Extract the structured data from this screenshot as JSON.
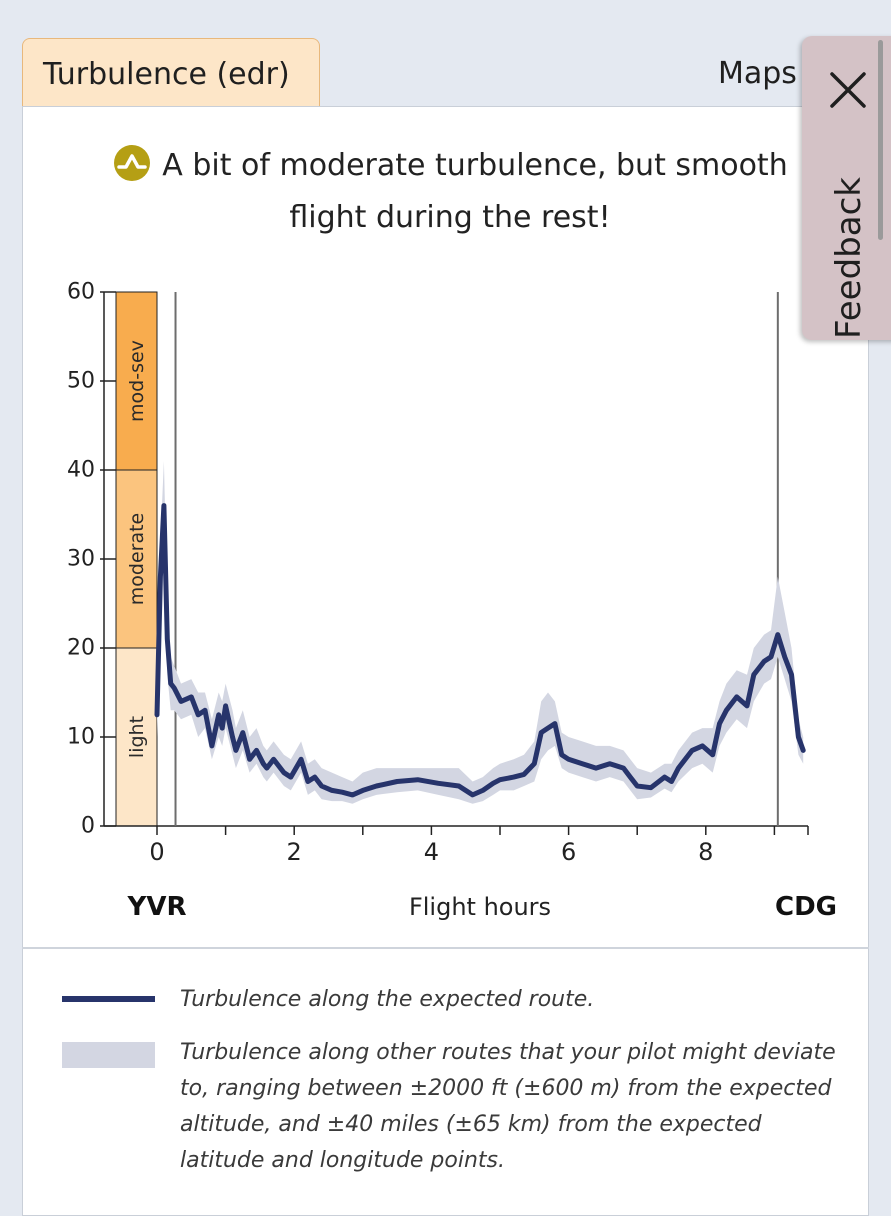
{
  "tabs": {
    "active": "Turbulence (edr)",
    "inactive": "Maps"
  },
  "summary": {
    "icon": "moderate-turbulence-icon",
    "text": "A bit of moderate turbulence, but smooth flight during the rest!"
  },
  "feedback": {
    "label": "Feedback",
    "close_icon": "close-icon"
  },
  "chart_data": {
    "type": "line",
    "title": "",
    "xlabel": "Flight hours",
    "ylabel": "",
    "xlim": [
      -0.6,
      9.5
    ],
    "ylim": [
      0,
      60
    ],
    "x_ticks": [
      0,
      2,
      4,
      6,
      8
    ],
    "y_ticks": [
      0,
      10,
      20,
      30,
      40,
      50,
      60
    ],
    "origin_label": "YVR",
    "destination_label": "CDG",
    "markers": [
      0.27,
      9.05
    ],
    "bands": [
      {
        "label": "light",
        "from": 0,
        "to": 20,
        "color": "#fde6c8"
      },
      {
        "label": "moderate",
        "from": 20,
        "to": 40,
        "color": "#fbc47e"
      },
      {
        "label": "mod-sev",
        "from": 40,
        "to": 60,
        "color": "#f8ac4e"
      }
    ],
    "series": [
      {
        "name": "Turbulence along the expected route.",
        "color": "#27346b",
        "x": [
          0,
          0.05,
          0.1,
          0.15,
          0.2,
          0.25,
          0.35,
          0.5,
          0.6,
          0.7,
          0.8,
          0.9,
          0.95,
          1.0,
          1.1,
          1.15,
          1.25,
          1.35,
          1.45,
          1.55,
          1.6,
          1.7,
          1.85,
          1.95,
          2.1,
          2.2,
          2.3,
          2.4,
          2.55,
          2.7,
          2.85,
          3.0,
          3.2,
          3.5,
          3.8,
          4.1,
          4.4,
          4.6,
          4.75,
          4.9,
          5.0,
          5.2,
          5.35,
          5.5,
          5.6,
          5.7,
          5.8,
          5.9,
          6.0,
          6.2,
          6.4,
          6.6,
          6.8,
          6.9,
          7.0,
          7.2,
          7.4,
          7.5,
          7.6,
          7.8,
          7.95,
          8.1,
          8.2,
          8.3,
          8.45,
          8.6,
          8.7,
          8.85,
          8.95,
          9.05,
          9.15,
          9.25,
          9.35,
          9.42
        ],
        "values": [
          12.5,
          28,
          36,
          21,
          16,
          15.5,
          14,
          14.5,
          12.5,
          13,
          9,
          12.5,
          11,
          13.5,
          10,
          8.5,
          10.5,
          7.5,
          8.5,
          7,
          6.5,
          7.5,
          6,
          5.5,
          7.5,
          5,
          5.5,
          4.5,
          4,
          3.8,
          3.5,
          4,
          4.5,
          5,
          5.2,
          4.8,
          4.5,
          3.5,
          4,
          4.8,
          5.2,
          5.5,
          5.8,
          7,
          10.5,
          11,
          11.5,
          8,
          7.5,
          7,
          6.5,
          7,
          6.5,
          5.5,
          4.5,
          4.3,
          5.5,
          5,
          6.5,
          8.5,
          9,
          8,
          11.5,
          13,
          14.5,
          13.5,
          17,
          18.5,
          19,
          21.5,
          19,
          17,
          10,
          8.5
        ]
      },
      {
        "name": "Turbulence along other routes that your pilot might deviate to, ranging between ±2000 ft (±600 m) from the expected altitude, and ±40 miles (±65 km) from the expected latitude and longitude points.",
        "color": "#d3d6e2",
        "x": [
          0,
          0.05,
          0.1,
          0.15,
          0.2,
          0.25,
          0.35,
          0.5,
          0.6,
          0.7,
          0.8,
          0.9,
          0.95,
          1.0,
          1.1,
          1.15,
          1.25,
          1.35,
          1.45,
          1.55,
          1.6,
          1.7,
          1.85,
          1.95,
          2.1,
          2.2,
          2.3,
          2.4,
          2.55,
          2.7,
          2.85,
          3.0,
          3.2,
          3.5,
          3.8,
          4.1,
          4.4,
          4.6,
          4.75,
          4.9,
          5.0,
          5.2,
          5.35,
          5.5,
          5.6,
          5.7,
          5.8,
          5.9,
          6.0,
          6.2,
          6.4,
          6.6,
          6.8,
          6.9,
          7.0,
          7.2,
          7.4,
          7.5,
          7.6,
          7.8,
          7.95,
          8.1,
          8.2,
          8.3,
          8.45,
          8.6,
          8.7,
          8.85,
          8.95,
          9.05,
          9.15,
          9.25,
          9.35,
          9.42
        ],
        "upper": [
          15,
          32,
          41,
          25,
          19,
          18,
          16,
          16.5,
          15,
          15,
          12,
          15,
          14,
          16,
          13,
          11,
          13,
          10,
          11,
          9,
          8.5,
          9.5,
          8,
          7.5,
          9.5,
          7,
          7.5,
          6.5,
          6,
          5.5,
          5,
          6,
          6.5,
          6.5,
          6.5,
          6.5,
          6.5,
          5,
          5.5,
          6.5,
          7,
          7.5,
          8,
          9.5,
          14,
          15,
          14,
          10.5,
          10,
          9.5,
          9,
          9,
          8.5,
          7.5,
          6.5,
          6,
          7,
          7,
          8.5,
          10.5,
          11,
          11,
          14,
          16,
          17.5,
          17,
          20,
          21.5,
          22,
          28,
          24,
          20,
          12,
          10
        ],
        "lower": [
          10,
          24,
          31,
          17,
          13,
          13,
          12,
          12.5,
          10,
          11,
          7.5,
          10,
          9,
          11,
          8,
          6.5,
          8.5,
          6,
          7,
          5.5,
          5,
          6,
          4.5,
          4,
          6,
          3.5,
          4,
          3,
          2.8,
          2.8,
          2.5,
          3,
          3.5,
          3.8,
          4,
          3.5,
          3,
          2.5,
          2.8,
          3.5,
          4,
          4,
          4.5,
          5,
          7.5,
          8.5,
          9,
          6.5,
          6,
          5.5,
          5,
          5.5,
          5,
          4,
          3,
          3.2,
          4.2,
          3.8,
          5,
          6.5,
          7,
          6,
          9,
          10.5,
          12,
          11,
          14,
          16,
          16.5,
          19,
          16.5,
          14,
          8,
          7
        ]
      }
    ]
  },
  "legend": [
    {
      "text": "Turbulence along the expected route."
    },
    {
      "text": "Turbulence along other routes that your pilot might deviate to, ranging between ±2000 ft (±600 m) from the expected altitude, and ±40 miles (±65 km) from the expected latitude and longitude points."
    }
  ]
}
